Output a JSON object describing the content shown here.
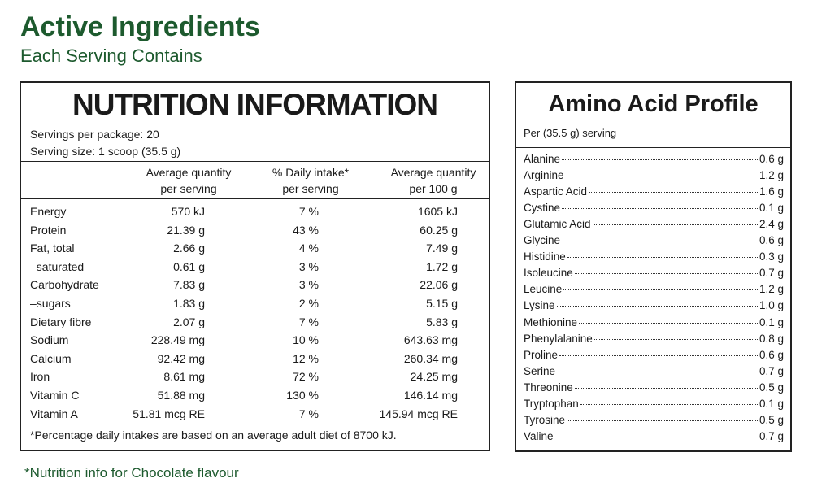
{
  "header": {
    "title": "Active Ingredients",
    "subtitle": "Each Serving Contains"
  },
  "nutrition": {
    "title": "NUTRITION INFORMATION",
    "servings": "Servings per package: 20",
    "serving_size": "Serving size: 1 scoop (35.5 g)",
    "columns": [
      [
        "Average quantity",
        "per serving"
      ],
      [
        "% Daily intake*",
        "per serving"
      ],
      [
        "Average quantity",
        "per 100 g"
      ]
    ],
    "rows": [
      [
        "Energy",
        "570 kJ",
        "7 %",
        "1605 kJ"
      ],
      [
        "Protein",
        "21.39 g",
        "43 %",
        "60.25 g"
      ],
      [
        "Fat, total",
        "2.66 g",
        "4 %",
        "7.49 g"
      ],
      [
        "–saturated",
        "0.61 g",
        "3 %",
        "1.72 g"
      ],
      [
        "Carbohydrate",
        "7.83 g",
        "3 %",
        "22.06 g"
      ],
      [
        "–sugars",
        "1.83 g",
        "2 %",
        "5.15 g"
      ],
      [
        "Dietary fibre",
        "2.07 g",
        "7 %",
        "5.83 g"
      ],
      [
        "Sodium",
        "228.49 mg",
        "10 %",
        "643.63 mg"
      ],
      [
        "Calcium",
        "92.42 mg",
        "12 %",
        "260.34 mg"
      ],
      [
        "Iron",
        "8.61 mg",
        "72 %",
        "24.25 mg"
      ],
      [
        "Vitamin C",
        "51.88 mg",
        "130 %",
        "146.14 mg"
      ],
      [
        "Vitamin A",
        "51.81 mcg RE",
        "7 %",
        "145.94 mcg RE"
      ]
    ],
    "footnote": "*Percentage daily intakes are based on an average adult diet of 8700 kJ."
  },
  "amino": {
    "title": "Amino Acid Profile",
    "subtitle": "Per (35.5 g) serving",
    "rows": [
      [
        "Alanine",
        "0.6 g"
      ],
      [
        "Arginine",
        "1.2 g"
      ],
      [
        "Aspartic Acid",
        "1.6 g"
      ],
      [
        "Cystine",
        "0.1 g"
      ],
      [
        "Glutamic Acid",
        "2.4 g"
      ],
      [
        "Glycine",
        "0.6 g"
      ],
      [
        "Histidine",
        "0.3 g"
      ],
      [
        "Isoleucine",
        "0.7 g"
      ],
      [
        "Leucine",
        "1.2 g"
      ],
      [
        "Lysine",
        "1.0 g"
      ],
      [
        "Methionine",
        "0.1 g"
      ],
      [
        "Phenylalanine",
        "0.8 g"
      ],
      [
        "Proline",
        "0.6 g"
      ],
      [
        "Serine",
        "0.7 g"
      ],
      [
        "Threonine",
        "0.5 g"
      ],
      [
        "Tryptophan",
        "0.1 g"
      ],
      [
        "Tyrosine",
        "0.5 g"
      ],
      [
        "Valine",
        "0.7 g"
      ]
    ]
  },
  "footer": "*Nutrition info for Chocolate flavour"
}
